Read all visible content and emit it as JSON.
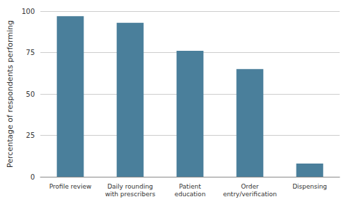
{
  "chart_data": {
    "type": "bar",
    "categories": [
      "Profile review",
      "Daily rounding\nwith prescribers",
      "Patient\neducation",
      "Order\nentry/verification",
      "Dispensing"
    ],
    "values": [
      97,
      93,
      76,
      65,
      8
    ],
    "color": "#4a7f9b",
    "ylabel": "Percentage of respondents performing",
    "ylim": [
      0,
      100
    ],
    "yticks": [
      0,
      25,
      50,
      75,
      100
    ],
    "grid": true
  }
}
